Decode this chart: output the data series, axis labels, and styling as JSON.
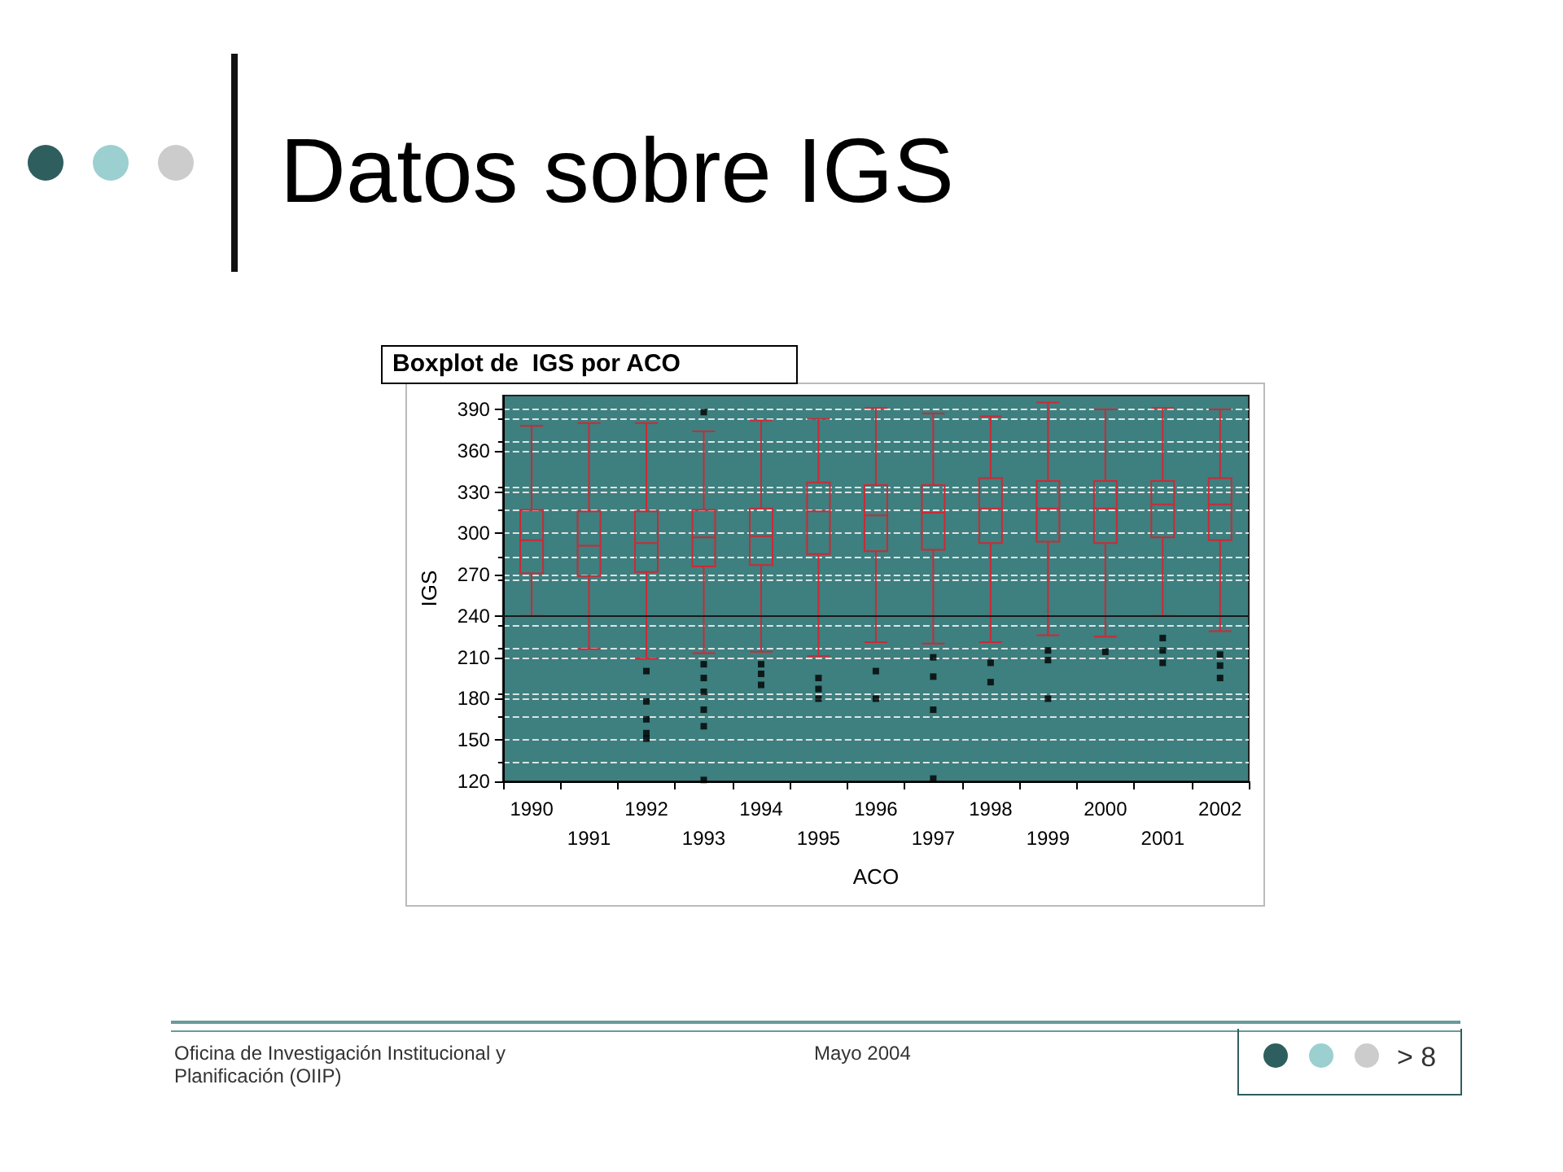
{
  "chart_data": {
    "type": "box",
    "title": "Datos sobre IGS",
    "subtitle": "Boxplot de  IGS por ACO",
    "xlabel": "ACO",
    "ylabel": "IGS",
    "categories": [
      "1990",
      "1991",
      "1992",
      "1993",
      "1994",
      "1995",
      "1996",
      "1997",
      "1998",
      "1999",
      "2000",
      "2001",
      "2002"
    ],
    "series": [
      {
        "color": "#cc2a36",
        "boxes": [
          {
            "low": 240,
            "q1": 271,
            "median": 295,
            "q3": 317,
            "high": 378
          },
          {
            "low": 216,
            "q1": 269,
            "median": 291,
            "q3": 316,
            "high": 380
          },
          {
            "low": 209,
            "q1": 272,
            "median": 293,
            "q3": 316,
            "high": 380,
            "outliers": [
              200,
              178,
              165,
              155,
              151
            ]
          },
          {
            "low": 213,
            "q1": 276,
            "median": 297,
            "q3": 317,
            "high": 374,
            "outliers": [
              388,
              205,
              195,
              185,
              172,
              160,
              121
            ]
          },
          {
            "low": 214,
            "q1": 277,
            "median": 298,
            "q3": 318,
            "high": 382,
            "outliers": [
              205,
              198,
              190
            ]
          },
          {
            "low": 211,
            "q1": 285,
            "median": 316,
            "q3": 337,
            "high": 383,
            "outliers": [
              195,
              187,
              180
            ]
          },
          {
            "low": 221,
            "q1": 287,
            "median": 313,
            "q3": 335,
            "high": 391,
            "outliers": [
              200,
              180
            ]
          },
          {
            "low": 220,
            "q1": 288,
            "median": 315,
            "q3": 335,
            "high": 387,
            "outliers": [
              210,
              196,
              172,
              122
            ]
          },
          {
            "low": 221,
            "q1": 293,
            "median": 318,
            "q3": 340,
            "high": 385,
            "outliers": [
              206,
              192
            ]
          },
          {
            "low": 226,
            "q1": 294,
            "median": 318,
            "q3": 338,
            "high": 395,
            "outliers": [
              215,
              208,
              180
            ]
          },
          {
            "low": 225,
            "q1": 293,
            "median": 318,
            "q3": 338,
            "high": 390,
            "outliers": [
              214
            ]
          },
          {
            "low": 240,
            "q1": 297,
            "median": 321,
            "q3": 338,
            "high": 391,
            "outliers": [
              224,
              215,
              206
            ]
          },
          {
            "low": 229,
            "q1": 295,
            "median": 321,
            "q3": 340,
            "high": 390,
            "outliers": [
              212,
              204,
              195
            ]
          }
        ]
      }
    ],
    "ylim": [
      120,
      400
    ],
    "yticks": [
      120,
      150,
      180,
      210,
      240,
      270,
      300,
      330,
      360,
      390
    ],
    "grid": "y",
    "ref_lines": [
      {
        "axis": "y",
        "value": 240,
        "color": "#1a1a1a"
      }
    ],
    "annotations": [
      "Oficina de Investigación Institucional y Planificación (OIIP)",
      "Mayo 2004",
      "> 8"
    ]
  }
}
